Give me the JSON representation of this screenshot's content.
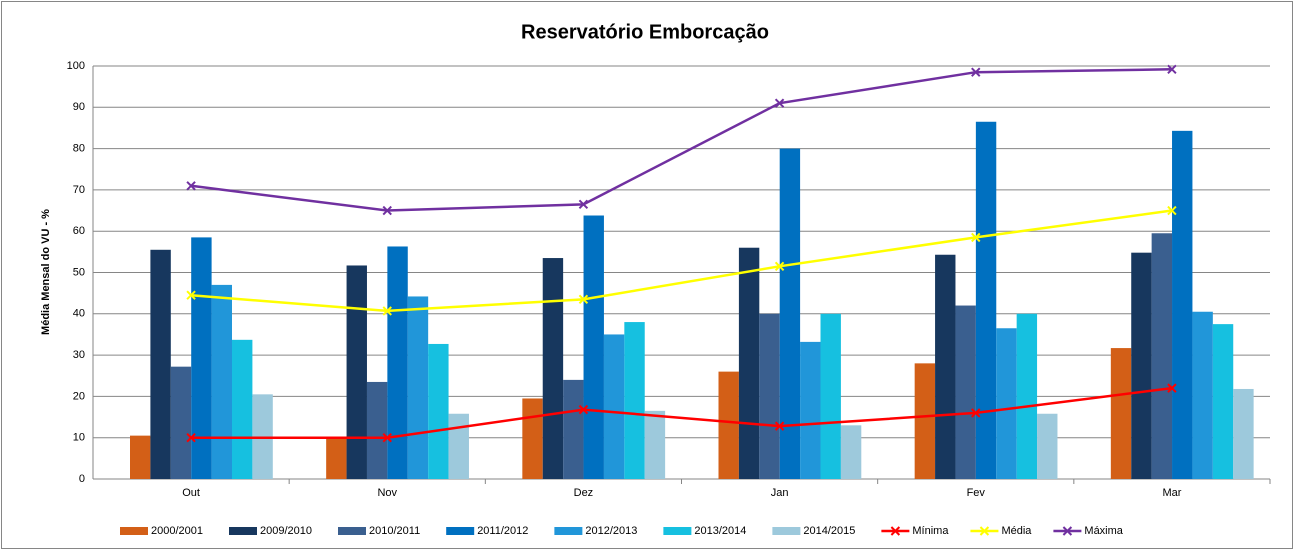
{
  "chart_data": {
    "type": "bar",
    "title": "Reservatório Emborcação",
    "y_label": "Média Mensal do VU - %",
    "categories": [
      "Out",
      "Nov",
      "Dez",
      "Jan",
      "Fev",
      "Mar"
    ],
    "ylim": [
      0,
      100
    ],
    "yticks": [
      0,
      10,
      20,
      30,
      40,
      50,
      60,
      70,
      80,
      90,
      100
    ],
    "grid": true,
    "series": [
      {
        "name": "2000/2001",
        "color": "#d35f17",
        "values": [
          10.5,
          10,
          19.5,
          26,
          28,
          31.7
        ]
      },
      {
        "name": "2009/2010",
        "color": "#17375e",
        "values": [
          55.5,
          51.7,
          53.5,
          56,
          54.3,
          54.8
        ]
      },
      {
        "name": "2010/2011",
        "color": "#3a5f8f",
        "values": [
          27.2,
          23.5,
          24,
          40,
          42,
          59.5
        ]
      },
      {
        "name": "2011/2012",
        "color": "#0070c0",
        "values": [
          58.5,
          56.3,
          63.8,
          80,
          86.5,
          84.3
        ]
      },
      {
        "name": "2012/2013",
        "color": "#2196d9",
        "values": [
          47,
          44.2,
          35,
          33.2,
          36.5,
          40.5
        ]
      },
      {
        "name": "2013/2014",
        "color": "#16c0e0",
        "values": [
          33.7,
          32.7,
          38,
          40,
          40,
          37.5
        ]
      },
      {
        "name": "2014/2015",
        "color": "#9dc9dc",
        "values": [
          20.5,
          15.8,
          16.5,
          13,
          15.8,
          21.8
        ]
      },
      {
        "name": "Mínima",
        "type": "line",
        "color": "#ff0000",
        "values": [
          10,
          10,
          16.8,
          12.8,
          16,
          22
        ]
      },
      {
        "name": "Média",
        "type": "line",
        "color": "#ffff00",
        "values": [
          44.5,
          40.7,
          43.5,
          51.5,
          58.5,
          65
        ]
      },
      {
        "name": "Máxima",
        "type": "line",
        "color": "#7030a0",
        "values": [
          71,
          65,
          66.5,
          91,
          98.5,
          99.2
        ]
      }
    ]
  }
}
